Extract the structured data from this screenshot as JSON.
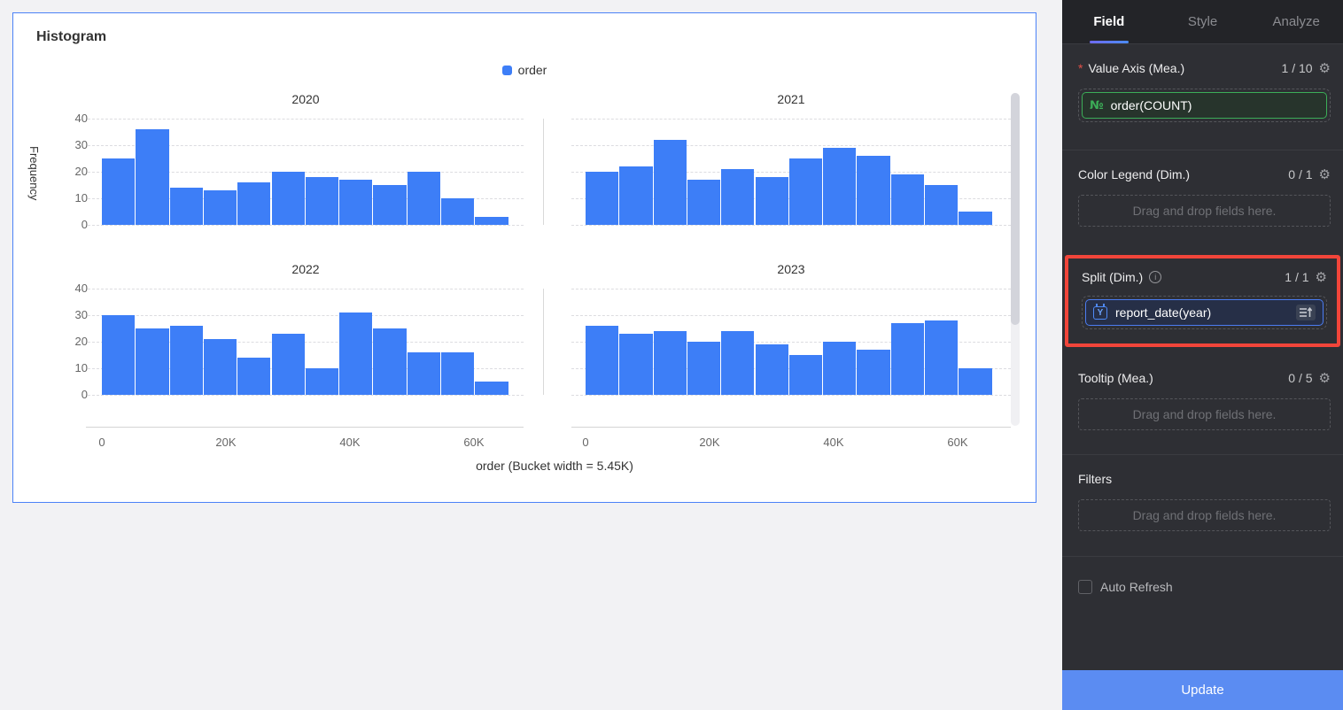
{
  "chart_data": {
    "type": "bar",
    "title": "Histogram",
    "legend": [
      "order"
    ],
    "legend_color": "#3d7ef7",
    "xlabel": "order (Bucket width = 5.45K)",
    "ylabel": "Frequency",
    "ylim": [
      0,
      40
    ],
    "yticks": [
      "40",
      "30",
      "20",
      "10",
      "0"
    ],
    "xticks": [
      "0",
      "20K",
      "40K",
      "60K"
    ],
    "grid": "dashed-horizontal",
    "legend_position": "top-center",
    "bucket_width": "5.45K",
    "panels": [
      {
        "title": "2020",
        "values": [
          25,
          36,
          14,
          13,
          16,
          20,
          18,
          17,
          15,
          20,
          10,
          3
        ]
      },
      {
        "title": "2021",
        "values": [
          20,
          22,
          32,
          17,
          21,
          18,
          25,
          29,
          26,
          19,
          15,
          5
        ]
      },
      {
        "title": "2022",
        "values": [
          30,
          25,
          26,
          21,
          14,
          23,
          10,
          31,
          25,
          16,
          16,
          5
        ]
      },
      {
        "title": "2023",
        "values": [
          26,
          23,
          24,
          20,
          24,
          19,
          15,
          20,
          17,
          27,
          28,
          10
        ]
      }
    ]
  },
  "panel": {
    "tabs": [
      {
        "label": "Field",
        "active": true
      },
      {
        "label": "Style",
        "active": false
      },
      {
        "label": "Analyze",
        "active": false
      }
    ],
    "sections": {
      "value_axis": {
        "label": "Value Axis (Mea.)",
        "count": "1 / 10",
        "required": "*",
        "field": {
          "icon": "№",
          "label": "order(COUNT)"
        }
      },
      "color_legend": {
        "label": "Color Legend (Dim.)",
        "count": "0 / 1",
        "placeholder": "Drag and drop fields here."
      },
      "split": {
        "label": "Split (Dim.)",
        "count": "1 / 1",
        "field": {
          "icon": "Y",
          "label": "report_date(year)"
        },
        "highlight_color": "#f1453a"
      },
      "tooltip": {
        "label": "Tooltip (Mea.)",
        "count": "0 / 5",
        "placeholder": "Drag and drop fields here."
      },
      "filters": {
        "label": "Filters",
        "placeholder": "Drag and drop fields here."
      }
    },
    "auto_refresh_label": "Auto Refresh",
    "update_label": "Update",
    "accent_colors": {
      "measure_green": "#3cae58",
      "dimension_blue": "#4b7cf1",
      "update_blue": "#5b8cf2"
    }
  }
}
